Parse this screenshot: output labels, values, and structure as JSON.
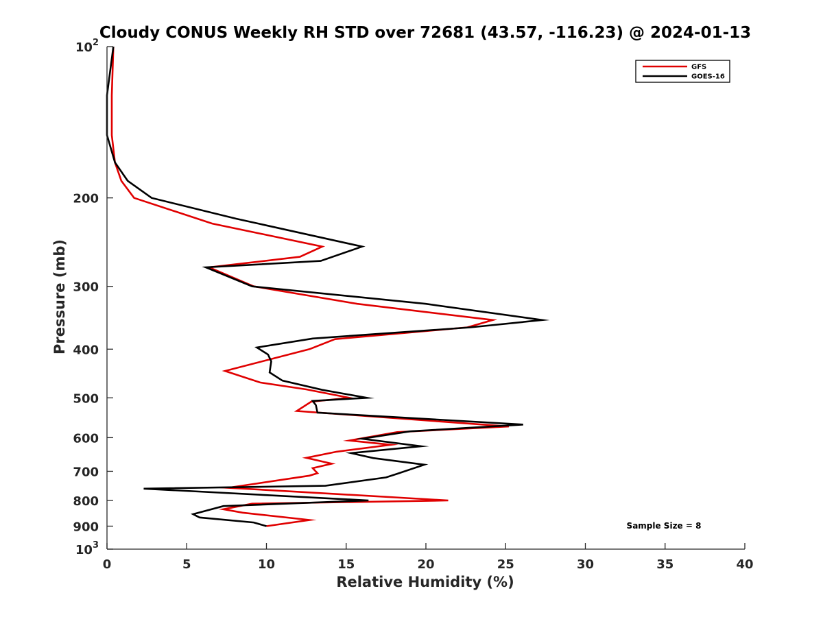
{
  "chart_data": {
    "type": "line",
    "title": "Cloudy CONUS Weekly RH STD over 72681 (43.57, -116.23) @ 2024-01-13",
    "xlabel": "Relative Humidity (%)",
    "ylabel": "Pressure (mb)",
    "xlim": [
      0,
      40
    ],
    "ylim": [
      100,
      1000
    ],
    "y_scale": "log",
    "y_reversed": true,
    "grid": false,
    "legend_position": "top-right",
    "x_ticks": [
      "0",
      "5",
      "10",
      "15",
      "20",
      "25",
      "30",
      "35",
      "40"
    ],
    "y_ticks": [
      {
        "value": 100,
        "base": "10",
        "exp": "2"
      },
      {
        "value": 200,
        "label": "200"
      },
      {
        "value": 300,
        "label": "300"
      },
      {
        "value": 400,
        "label": "400"
      },
      {
        "value": 500,
        "label": "500"
      },
      {
        "value": 600,
        "label": "600"
      },
      {
        "value": 700,
        "label": "700"
      },
      {
        "value": 800,
        "label": "800"
      },
      {
        "value": 900,
        "label": "900"
      },
      {
        "value": 1000,
        "base": "10",
        "exp": "3"
      }
    ],
    "annotation": "Sample Size = 8",
    "series": [
      {
        "name": "GFS",
        "color": "#e00000",
        "points": [
          [
            0.4,
            100
          ],
          [
            0.3,
            125
          ],
          [
            0.3,
            150
          ],
          [
            0.5,
            170
          ],
          [
            0.9,
            185
          ],
          [
            1.7,
            200
          ],
          [
            6.6,
            225
          ],
          [
            13.5,
            250
          ],
          [
            12.1,
            262
          ],
          [
            6.4,
            275
          ],
          [
            9.2,
            300
          ],
          [
            15.7,
            325
          ],
          [
            24.2,
            350
          ],
          [
            22.6,
            362
          ],
          [
            14.3,
            382
          ],
          [
            12.7,
            400
          ],
          [
            7.4,
            442
          ],
          [
            9.6,
            466
          ],
          [
            12.5,
            481
          ],
          [
            15.2,
            500
          ],
          [
            12.8,
            509
          ],
          [
            11.9,
            531
          ],
          [
            25.2,
            570
          ],
          [
            18.2,
            585
          ],
          [
            15.2,
            608
          ],
          [
            17.8,
            620
          ],
          [
            14.4,
            640
          ],
          [
            12.5,
            658
          ],
          [
            14.1,
            676
          ],
          [
            12.9,
            690
          ],
          [
            13.2,
            706
          ],
          [
            12.7,
            714
          ],
          [
            7.6,
            755
          ],
          [
            21.4,
            800
          ],
          [
            9.1,
            812
          ],
          [
            7.3,
            833
          ],
          [
            8.5,
            846
          ],
          [
            12.7,
            875
          ],
          [
            10.0,
            900
          ]
        ]
      },
      {
        "name": "GOES-16",
        "color": "#000000",
        "points": [
          [
            0.4,
            100
          ],
          [
            0.0,
            125
          ],
          [
            0.0,
            150
          ],
          [
            0.5,
            170
          ],
          [
            1.3,
            185
          ],
          [
            2.8,
            200
          ],
          [
            8.1,
            220
          ],
          [
            16.0,
            250
          ],
          [
            13.4,
            267
          ],
          [
            6.2,
            275
          ],
          [
            9.1,
            300
          ],
          [
            20.0,
            325
          ],
          [
            27.3,
            350
          ],
          [
            22.8,
            362
          ],
          [
            12.9,
            381
          ],
          [
            9.4,
            397
          ],
          [
            10.1,
            410
          ],
          [
            10.3,
            423
          ],
          [
            10.2,
            445
          ],
          [
            11.0,
            462
          ],
          [
            13.5,
            482
          ],
          [
            16.3,
            500
          ],
          [
            12.9,
            507
          ],
          [
            13.1,
            517
          ],
          [
            13.2,
            535
          ],
          [
            26.1,
            565
          ],
          [
            19.0,
            583
          ],
          [
            16.0,
            603
          ],
          [
            19.7,
            624
          ],
          [
            15.3,
            644
          ],
          [
            16.7,
            659
          ],
          [
            19.9,
            679
          ],
          [
            18.2,
            708
          ],
          [
            17.5,
            720
          ],
          [
            13.7,
            748
          ],
          [
            2.3,
            758
          ],
          [
            16.4,
            800
          ],
          [
            7.3,
            821
          ],
          [
            5.4,
            852
          ],
          [
            5.8,
            865
          ],
          [
            9.2,
            885
          ],
          [
            10.0,
            900
          ]
        ]
      }
    ]
  }
}
